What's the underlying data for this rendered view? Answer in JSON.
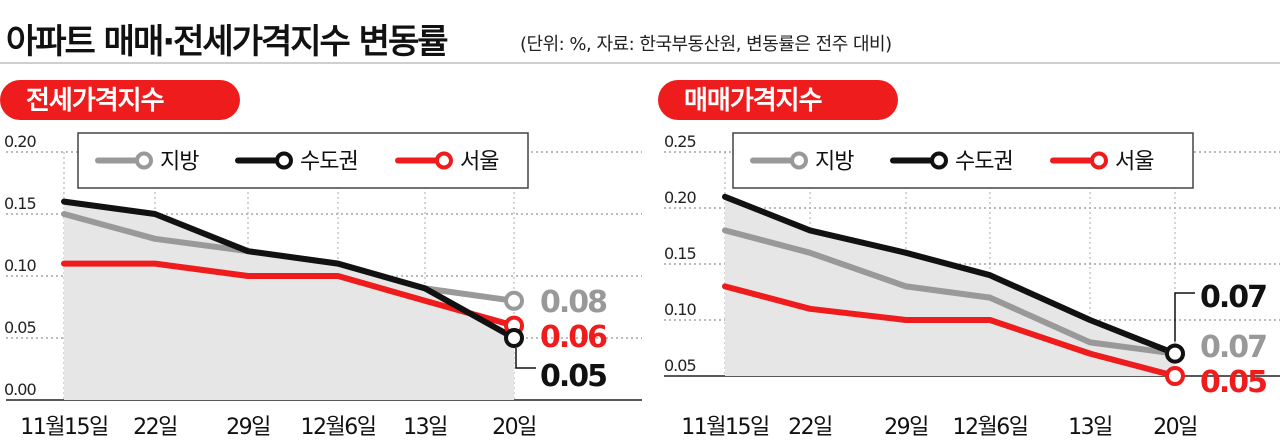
{
  "title": "아파트 매매·전세가격지수 변동률",
  "subtitle": "(단위: %, 자료: 한국부동산원, 변동률은 전주 대비)",
  "chart_data": [
    {
      "type": "line",
      "title": "전세가격지수",
      "categories": [
        "11월15일",
        "22일",
        "29일",
        "12월6일",
        "13일",
        "20일"
      ],
      "yticks": [
        "0.00",
        "0.05",
        "0.10",
        "0.15",
        "0.20"
      ],
      "ylim": [
        0,
        0.2
      ],
      "grid": true,
      "legend_position": "top",
      "series": [
        {
          "name": "지방",
          "values": [
            0.15,
            0.13,
            0.12,
            0.11,
            0.09,
            0.08
          ],
          "end_label": "0.08",
          "color": "#999999"
        },
        {
          "name": "수도권",
          "values": [
            0.16,
            0.15,
            0.12,
            0.11,
            0.09,
            0.05
          ],
          "end_label": "0.05",
          "color": "#111111"
        },
        {
          "name": "서울",
          "values": [
            0.11,
            0.11,
            0.1,
            0.1,
            0.08,
            0.06
          ],
          "end_label": "0.06",
          "color": "#ee1c1c"
        }
      ]
    },
    {
      "type": "line",
      "title": "매매가격지수",
      "categories": [
        "11월15일",
        "22일",
        "29일",
        "12월6일",
        "13일",
        "20일"
      ],
      "yticks": [
        "0.05",
        "0.10",
        "0.15",
        "0.20",
        "0.25"
      ],
      "ylim": [
        0.02,
        0.25
      ],
      "grid": true,
      "legend_position": "top",
      "series": [
        {
          "name": "지방",
          "values": [
            0.18,
            0.16,
            0.13,
            0.12,
            0.08,
            0.07
          ],
          "end_label": "0.07",
          "color": "#999999"
        },
        {
          "name": "수도권",
          "values": [
            0.21,
            0.18,
            0.16,
            0.14,
            0.1,
            0.07
          ],
          "end_label": "0.07",
          "color": "#111111"
        },
        {
          "name": "서울",
          "values": [
            0.13,
            0.11,
            0.1,
            0.1,
            0.07,
            0.05
          ],
          "end_label": "0.05",
          "color": "#ee1c1c"
        }
      ]
    }
  ]
}
